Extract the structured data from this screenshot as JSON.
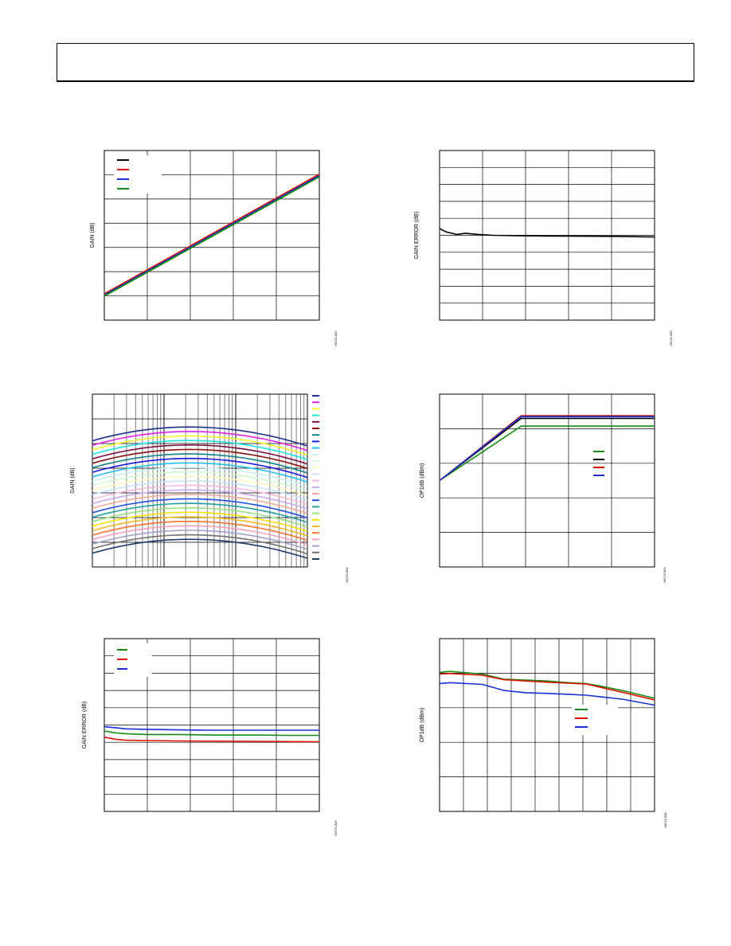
{
  "page": {
    "header_text": ""
  },
  "chart_data": [
    {
      "id": "c1",
      "type": "line",
      "ylabel": "GAIN (dB)",
      "figure_code": "06174-002",
      "x": [
        0,
        1
      ],
      "xlim": [
        0,
        1
      ],
      "ylim": [
        0,
        1
      ],
      "grid": {
        "x_lines": 5,
        "y_lines": 7
      },
      "legend": {
        "placement": "top-left"
      },
      "series": [
        {
          "color": "#000000",
          "values": [
            0.15,
            0.855
          ]
        },
        {
          "color": "#dd1100",
          "values": [
            0.155,
            0.86
          ]
        },
        {
          "color": "#1a2fd6",
          "values": [
            0.148,
            0.852
          ]
        },
        {
          "color": "#168a16",
          "values": [
            0.142,
            0.845
          ]
        }
      ]
    },
    {
      "id": "c2",
      "type": "line",
      "ylabel": "GAIN ERROR (dB)",
      "figure_code": "06174-006",
      "x": [
        0,
        0.03,
        0.08,
        0.12,
        0.18,
        0.25,
        0.35,
        0.5,
        0.65,
        0.8,
        0.9,
        1.0
      ],
      "xlim": [
        0,
        1
      ],
      "ylim": [
        0,
        1
      ],
      "grid": {
        "x_lines": 5,
        "y_lines": 10
      },
      "series": [
        {
          "color": "#000000",
          "values": [
            0.54,
            0.52,
            0.505,
            0.512,
            0.505,
            0.5,
            0.498,
            0.496,
            0.495,
            0.494,
            0.492,
            0.49
          ]
        }
      ]
    },
    {
      "id": "c3",
      "type": "line",
      "ylabel": "GAIN (dB)",
      "figure_code": "06174-004",
      "xscale": "log",
      "xlim": [
        1,
        1000
      ],
      "ylim": [
        0,
        1
      ],
      "grid": {
        "x_log_decades": 3,
        "y_lines": 7
      },
      "legend": {
        "placement": "right-outside"
      },
      "family": {
        "count": 26,
        "top_level": 0.81,
        "bottom_level": 0.16,
        "left_droop": 0.08,
        "right_droop": 0.11,
        "colors": [
          "#1b2f8a",
          "#e021e0",
          "#f2f230",
          "#22e0e0",
          "#7a1040",
          "#8a1010",
          "#15808a",
          "#1a1ae0",
          "#20c0f0",
          "#c8f0f0",
          "#d0f8d0",
          "#f8f8c0",
          "#c8e0f8",
          "#f8b8e0",
          "#c8a8f0",
          "#f0a898",
          "#2050e0",
          "#20a0a0",
          "#98e080",
          "#f8e000",
          "#f8b820",
          "#f87030",
          "#f8a0c0",
          "#a0a0c8",
          "#707070",
          "#1c3a6a"
        ]
      }
    },
    {
      "id": "c4",
      "type": "line",
      "ylabel": "OP1dB (dBm)",
      "figure_code": "06174-003",
      "x": [
        0,
        0.38,
        1.0
      ],
      "xlim": [
        0,
        1
      ],
      "ylim": [
        0,
        1
      ],
      "grid": {
        "x_lines": 5,
        "y_lines": 5
      },
      "legend": {
        "placement": "right"
      },
      "series": [
        {
          "color": "#168a16",
          "values": [
            0.5,
            0.815,
            0.815
          ]
        },
        {
          "color": "#000000",
          "values": [
            0.5,
            0.86,
            0.86
          ]
        },
        {
          "color": "#dd1100",
          "values": [
            0.5,
            0.875,
            0.875
          ]
        },
        {
          "color": "#1a2fd6",
          "values": [
            0.5,
            0.87,
            0.87
          ]
        }
      ],
      "series_start_y": [
        0.5,
        0.5,
        0.5,
        0.5
      ],
      "series_origin": {
        "x": 0,
        "y": 0.5
      }
    },
    {
      "id": "c5",
      "type": "line",
      "ylabel": "GAIN ERROR (dB)",
      "figure_code": "06174-005",
      "x": [
        0,
        0.05,
        0.1,
        0.2,
        0.35,
        0.5,
        0.7,
        0.85,
        1.0
      ],
      "xlim": [
        0,
        1
      ],
      "ylim": [
        0,
        1
      ],
      "grid": {
        "x_lines": 5,
        "y_lines": 10
      },
      "legend": {
        "placement": "top-left"
      },
      "series": [
        {
          "color": "#168a16",
          "values": [
            0.465,
            0.455,
            0.45,
            0.445,
            0.445,
            0.442,
            0.442,
            0.44,
            0.44
          ]
        },
        {
          "color": "#dd1100",
          "values": [
            0.43,
            0.418,
            0.412,
            0.41,
            0.408,
            0.407,
            0.405,
            0.404,
            0.403
          ]
        },
        {
          "color": "#1a2fd6",
          "values": [
            0.49,
            0.485,
            0.478,
            0.475,
            0.472,
            0.47,
            0.47,
            0.47,
            0.47
          ]
        }
      ]
    },
    {
      "id": "c6",
      "type": "line",
      "ylabel": "OP1dB (dBm)",
      "figure_code": "06174-008",
      "x": [
        0,
        0.05,
        0.2,
        0.3,
        0.4,
        0.5,
        0.6,
        0.68,
        0.75,
        0.85,
        1.0
      ],
      "xlim": [
        0,
        1
      ],
      "ylim": [
        0,
        1
      ],
      "grid": {
        "x_lines": 9,
        "y_lines": 5
      },
      "legend": {
        "placement": "center-right"
      },
      "series": [
        {
          "color": "#168a16",
          "values": [
            0.805,
            0.81,
            0.795,
            0.765,
            0.76,
            0.755,
            0.745,
            0.74,
            0.725,
            0.7,
            0.655
          ]
        },
        {
          "color": "#dd1100",
          "values": [
            0.795,
            0.798,
            0.788,
            0.762,
            0.755,
            0.748,
            0.742,
            0.738,
            0.718,
            0.69,
            0.645
          ]
        },
        {
          "color": "#1a2fd6",
          "values": [
            0.74,
            0.745,
            0.735,
            0.7,
            0.687,
            0.683,
            0.678,
            0.673,
            0.663,
            0.65,
            0.615
          ]
        }
      ]
    }
  ]
}
